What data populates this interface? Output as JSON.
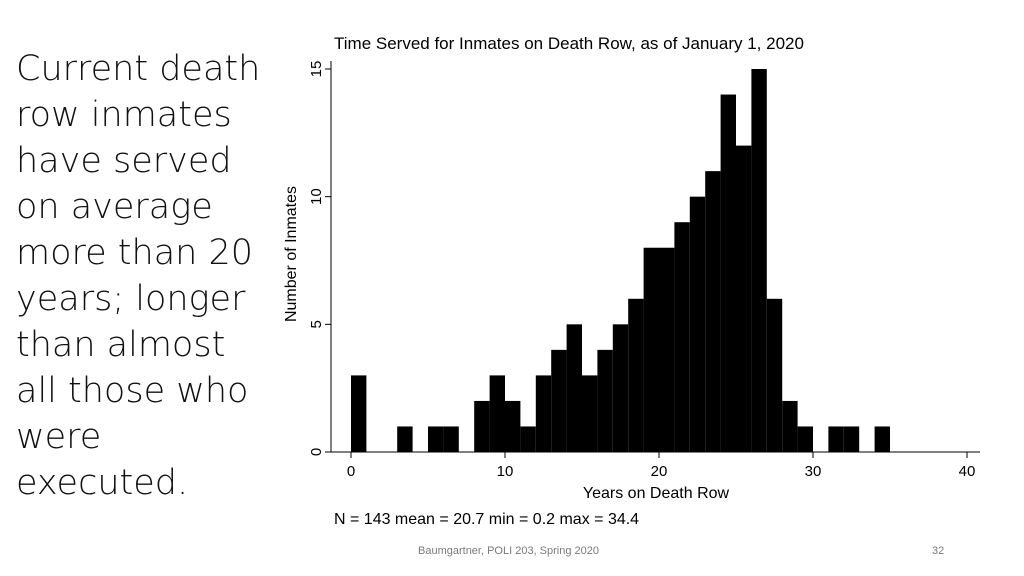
{
  "slide": {
    "text_lines": [
      "Current death",
      "row inmates",
      "have served",
      "on average",
      "more than 20",
      "years; longer",
      "than almost",
      "all those who",
      "were",
      "executed."
    ],
    "footer_text": "Baumgartner, POLI 203, Spring 2020",
    "page_number": "32"
  },
  "chart_data": {
    "type": "bar",
    "title": "Time Served for Inmates on Death Row, as of January 1, 2020",
    "xlabel": "Years on Death Row",
    "ylabel": "Number of Inmates",
    "xlim": [
      0,
      40
    ],
    "ylim": [
      0,
      15
    ],
    "xticks": [
      0,
      10,
      20,
      30,
      40
    ],
    "yticks": [
      0,
      5,
      10,
      15
    ],
    "bin_width": 1,
    "bins": [
      0,
      1,
      2,
      3,
      4,
      5,
      6,
      7,
      8,
      9,
      10,
      11,
      12,
      13,
      14,
      15,
      16,
      17,
      18,
      19,
      20,
      21,
      22,
      23,
      24,
      25,
      26,
      27,
      28,
      29,
      30,
      31,
      32,
      33,
      34
    ],
    "values": [
      3,
      0,
      0,
      1,
      0,
      1,
      1,
      0,
      2,
      3,
      2,
      1,
      3,
      4,
      5,
      3,
      4,
      5,
      6,
      8,
      8,
      9,
      10,
      11,
      14,
      12,
      15,
      6,
      2,
      1,
      0,
      1,
      1,
      0,
      1
    ],
    "note": "N = 143 mean = 20.7 min = 0.2 max = 34.4",
    "bar_color": "#000000",
    "grid": false
  }
}
